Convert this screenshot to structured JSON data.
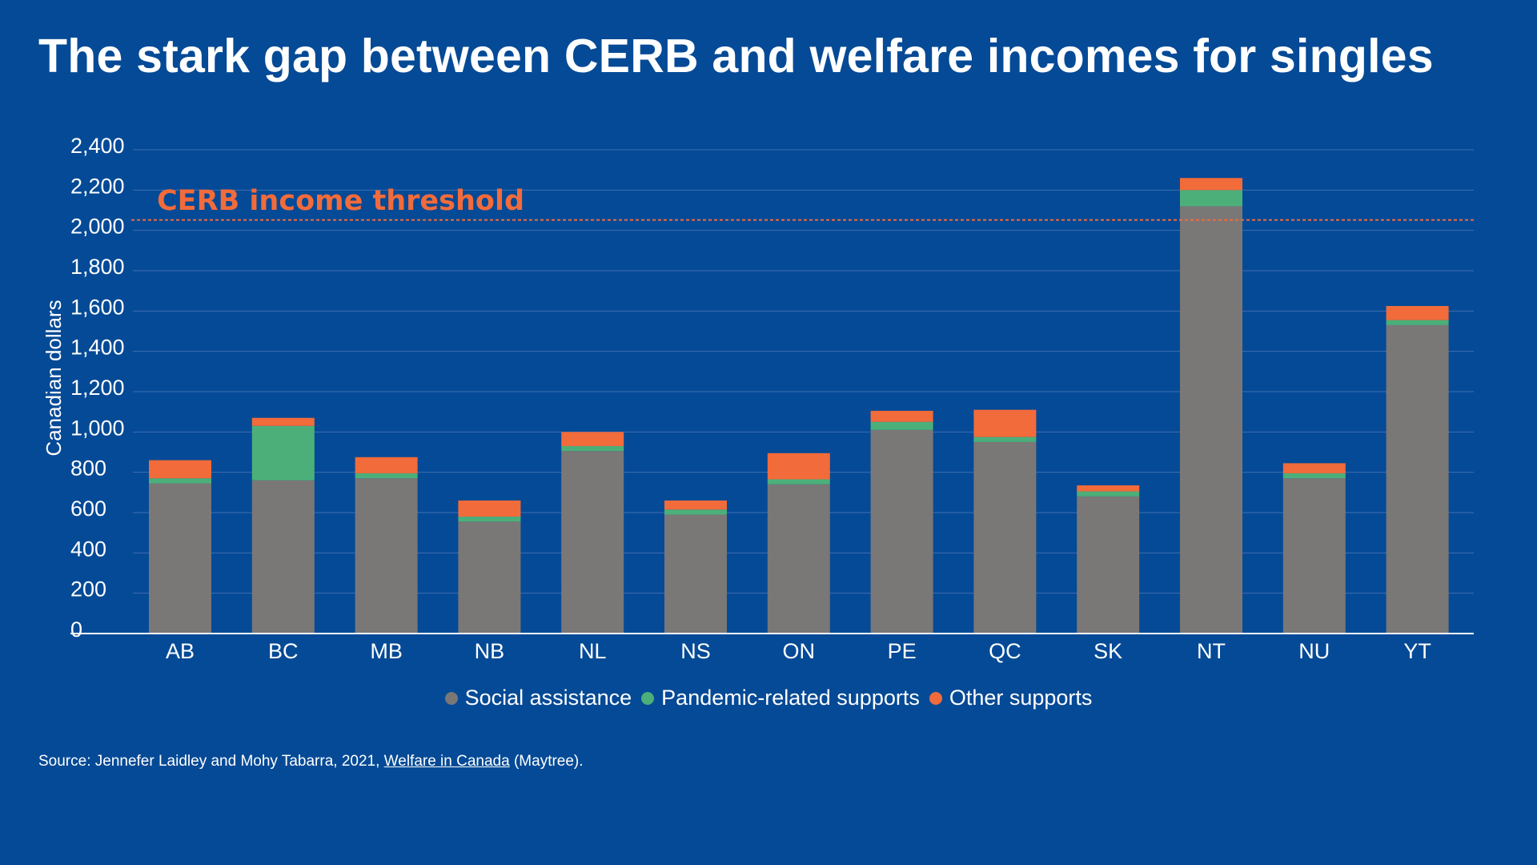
{
  "title": "The stark gap between CERB and welfare incomes for singles",
  "source": {
    "prefix": "Source: Jennefer Laidley and Mohy Tabarra, 2021, ",
    "link_text": "Welfare in Canada",
    "suffix": " (Maytree)."
  },
  "colors": {
    "background": "#054a96",
    "social": "#7a7777",
    "pandemic": "#4caf7a",
    "other": "#f26b3a",
    "threshold": "#f26b3a",
    "grid": "#3f6fb0"
  },
  "chart_data": {
    "type": "bar",
    "stacked": true,
    "title": "The stark gap between CERB and welfare incomes for singles",
    "xlabel": "",
    "ylabel": "Canadian dollars",
    "ylim": [
      0,
      2400
    ],
    "yticks": [
      "0",
      "200",
      "400",
      "600",
      "800",
      "1,000",
      "1,200",
      "1,400",
      "1,600",
      "1,800",
      "2,000",
      "2,200",
      "2,400"
    ],
    "ytick_values": [
      0,
      200,
      400,
      600,
      800,
      1000,
      1200,
      1400,
      1600,
      1800,
      2000,
      2200,
      2400
    ],
    "grid": true,
    "categories": [
      "AB",
      "BC",
      "MB",
      "NB",
      "NL",
      "NS",
      "ON",
      "PE",
      "QC",
      "SK",
      "NT",
      "NU",
      "YT"
    ],
    "series": [
      {
        "name": "Social assistance",
        "values": [
          745,
          760,
          770,
          555,
          905,
          590,
          740,
          1010,
          950,
          680,
          2120,
          770,
          1530
        ]
      },
      {
        "name": "Pandemic-related supports",
        "values": [
          25,
          270,
          25,
          25,
          25,
          25,
          25,
          40,
          25,
          25,
          80,
          25,
          25
        ]
      },
      {
        "name": "Other supports",
        "values": [
          90,
          40,
          80,
          80,
          70,
          45,
          130,
          55,
          135,
          30,
          60,
          50,
          70
        ]
      }
    ],
    "threshold": {
      "label": "CERB income threshold",
      "value": 2000
    },
    "legend": {
      "position": "bottom",
      "entries": [
        "Social assistance",
        "Pandemic-related supports",
        "Other supports"
      ]
    }
  }
}
